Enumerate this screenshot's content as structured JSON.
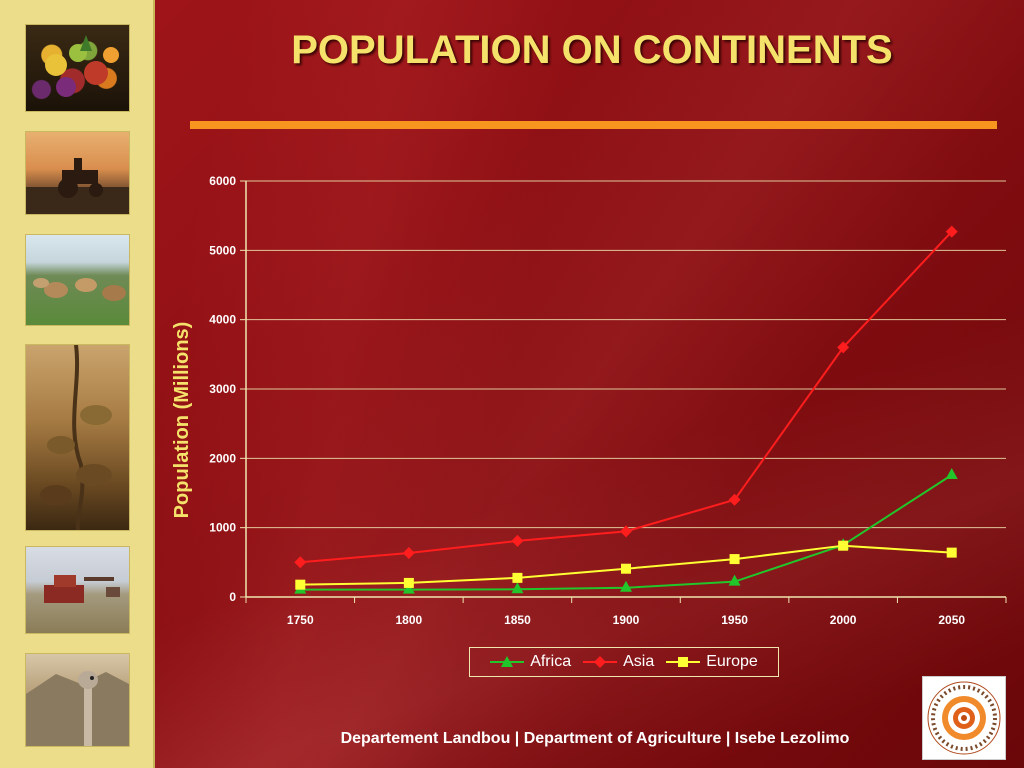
{
  "slide": {
    "title": "POPULATION ON CONTINENTS",
    "footer": "Departement Landbou | Department of Agriculture | Isebe Lezolimo",
    "logo_text": "WESTERN CAPE • WES-KAAPLAND • INTSHONA KOLONI"
  },
  "colors": {
    "background": "#8e1014",
    "sidebar": "#ecdd8a",
    "title": "#f5e26a",
    "rule": "#f7951f",
    "africa": "#22c52a",
    "asia": "#ff1d1d",
    "europe": "#ffff33"
  },
  "sidebar_images": [
    "fruit-basket-photo",
    "tractor-photo",
    "cattle-photo",
    "vineyard-photo",
    "harvester-photo",
    "ostrich-photo"
  ],
  "chart_data": {
    "type": "line",
    "title": "",
    "xlabel": "",
    "ylabel": "Population (Millions)",
    "x": [
      "1750",
      "1800",
      "1850",
      "1900",
      "1950",
      "2000",
      "2050"
    ],
    "ylim": [
      0,
      6000
    ],
    "yticks": [
      "0",
      "1000",
      "2000",
      "3000",
      "4000",
      "5000",
      "6000"
    ],
    "grid": true,
    "legend": "bottom-center",
    "series": [
      {
        "name": "Africa",
        "marker": "triangle",
        "color": "#22c52a",
        "values": [
          106,
          107,
          111,
          133,
          221,
          749,
          1760
        ]
      },
      {
        "name": "Asia",
        "marker": "diamond",
        "color": "#ff1d1d",
        "values": [
          502,
          635,
          809,
          947,
          1402,
          3600,
          5270
        ]
      },
      {
        "name": "Europe",
        "marker": "square",
        "color": "#ffff33",
        "values": [
          178,
          203,
          276,
          408,
          547,
          740,
          640
        ]
      }
    ]
  }
}
